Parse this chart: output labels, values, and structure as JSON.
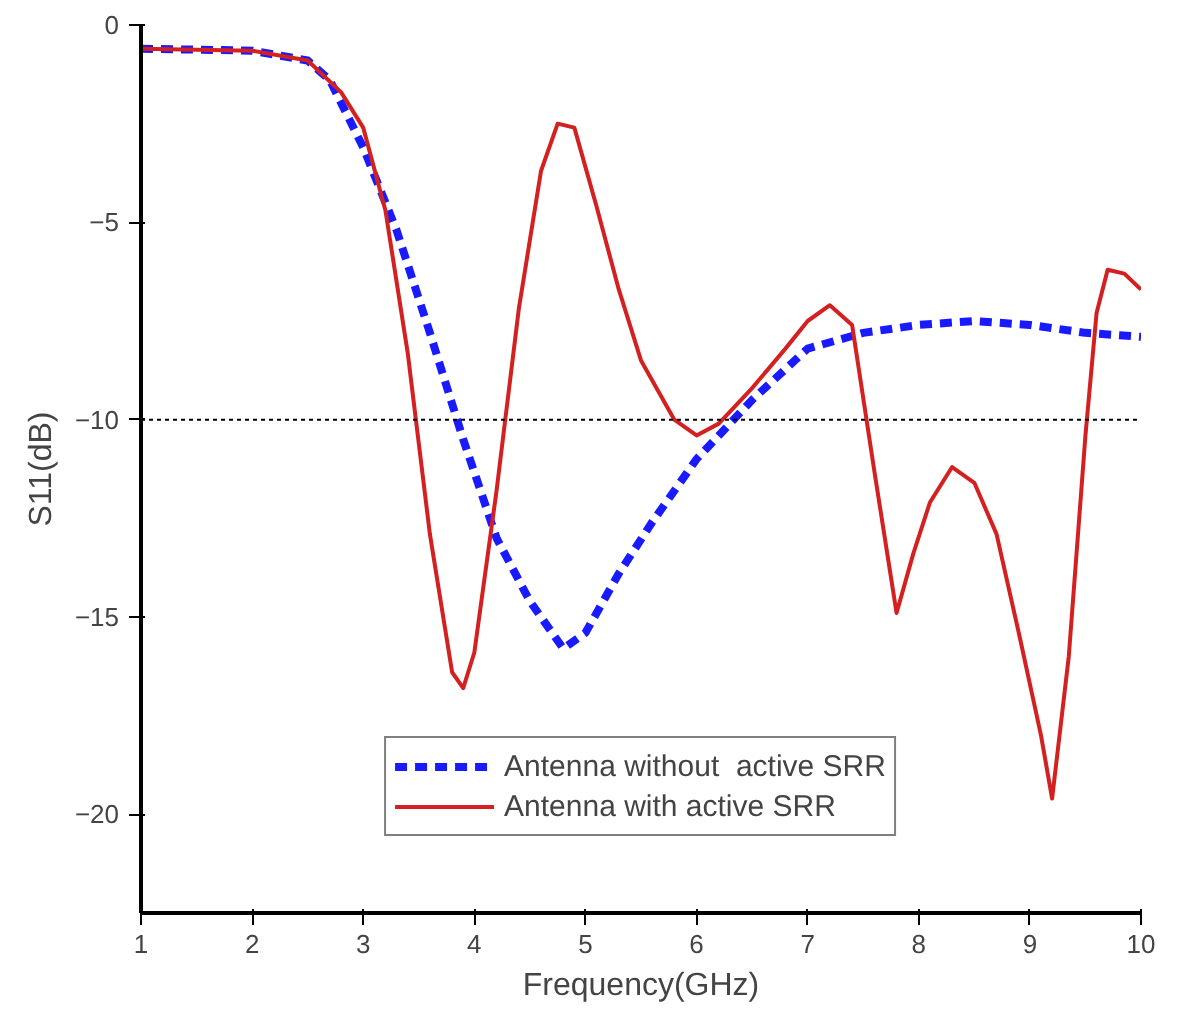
{
  "chart_data": {
    "type": "line",
    "xlabel": "Frequency(GHz)",
    "ylabel": "S11(dB)",
    "xlim": [
      1,
      10
    ],
    "ylim": [
      -22.5,
      0
    ],
    "xticks": [
      1,
      2,
      3,
      4,
      5,
      6,
      7,
      8,
      9,
      10
    ],
    "yticks": [
      0,
      -5,
      -10,
      -15,
      -20
    ],
    "grid": false,
    "legend": "bottom",
    "marker": "none",
    "ref_lines": [
      {
        "axis": "y",
        "value": -10,
        "label": null,
        "color": "#000000",
        "line_style": "dotted"
      }
    ],
    "series": [
      {
        "name": "Antenna without  active SRR",
        "color": "#1a1aff",
        "line_style": "dashed",
        "x": [
          1,
          2,
          2.5,
          2.7,
          3.0,
          3.3,
          3.6,
          3.9,
          4.2,
          4.5,
          4.8,
          5.0,
          5.3,
          5.6,
          6.0,
          6.5,
          7.0,
          7.5,
          8.0,
          8.5,
          9.0,
          9.5,
          10
        ],
        "values": [
          -0.6,
          -0.65,
          -0.9,
          -1.4,
          -3.1,
          -5.2,
          -7.8,
          -10.5,
          -13,
          -14.6,
          -15.8,
          -15.4,
          -13.9,
          -12.6,
          -11.0,
          -9.5,
          -8.2,
          -7.8,
          -7.6,
          -7.5,
          -7.6,
          -7.8,
          -7.9
        ]
      },
      {
        "name": "Antenna with active SRR",
        "color": "#d42020",
        "line_style": "solid",
        "x": [
          1,
          2,
          2.5,
          2.8,
          3.0,
          3.2,
          3.4,
          3.6,
          3.8,
          3.9,
          4.0,
          4.2,
          4.4,
          4.6,
          4.75,
          4.9,
          5.1,
          5.3,
          5.5,
          5.8,
          6.0,
          6.2,
          6.5,
          6.8,
          7.0,
          7.2,
          7.4,
          7.6,
          7.8,
          7.95,
          8.1,
          8.3,
          8.5,
          8.7,
          8.9,
          9.1,
          9.2,
          9.35,
          9.5,
          9.6,
          9.7,
          9.85,
          10
        ],
        "values": [
          -0.6,
          -0.65,
          -0.9,
          -1.7,
          -2.6,
          -4.7,
          -8.3,
          -12.9,
          -16.4,
          -16.8,
          -15.9,
          -11.8,
          -7.2,
          -3.7,
          -2.5,
          -2.6,
          -4.6,
          -6.7,
          -8.5,
          -10.0,
          -10.4,
          -10.1,
          -9.2,
          -8.2,
          -7.5,
          -7.1,
          -7.6,
          -11.3,
          -14.9,
          -13.4,
          -12.1,
          -11.2,
          -11.6,
          -12.9,
          -15.4,
          -18,
          -19.6,
          -16,
          -10.4,
          -7.3,
          -6.2,
          -6.3,
          -6.7
        ]
      }
    ]
  }
}
